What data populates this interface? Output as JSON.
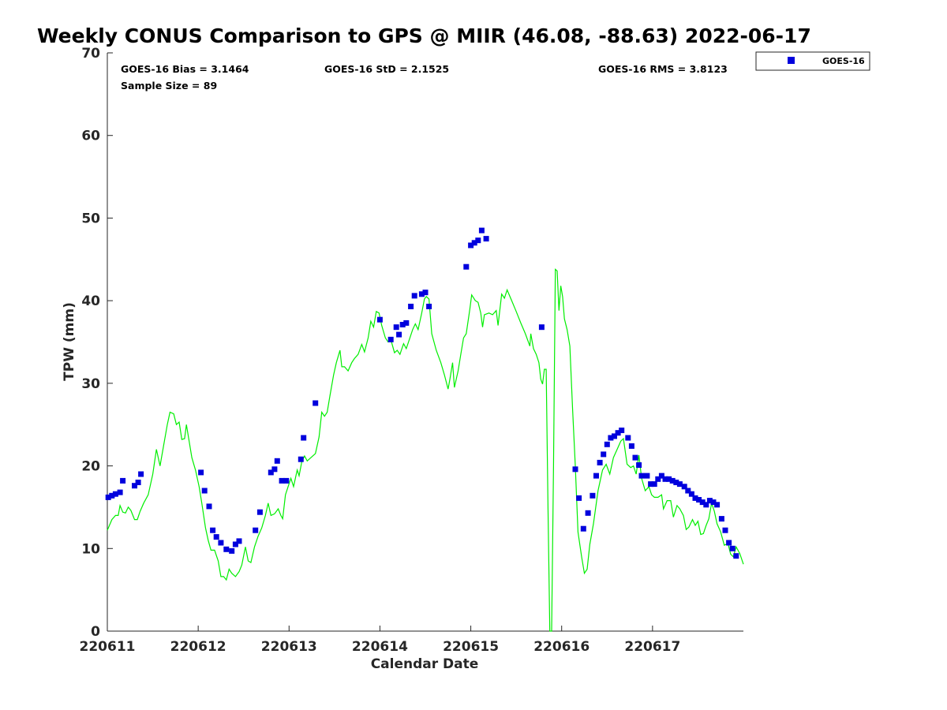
{
  "chart_data": {
    "type": "scatter",
    "title": "Weekly CONUS Comparison to GPS @ MIIR (46.08, -88.63) 2022-06-17",
    "xlabel": "Calendar Date",
    "ylabel": "TPW (mm)",
    "ylim": [
      0,
      70
    ],
    "xlim": [
      0,
      7
    ],
    "x_unit": "days since 220611",
    "yticks": [
      0,
      10,
      20,
      30,
      40,
      50,
      60,
      70
    ],
    "xticks": [
      {
        "x": 0,
        "label": "220611"
      },
      {
        "x": 1,
        "label": "220612"
      },
      {
        "x": 2,
        "label": "220613"
      },
      {
        "x": 3,
        "label": "220614"
      },
      {
        "x": 4,
        "label": "220615"
      },
      {
        "x": 5,
        "label": "220616"
      },
      {
        "x": 6,
        "label": "220617"
      }
    ],
    "stats": {
      "bias": "GOES-16 Bias = 3.1464",
      "std": "GOES-16 StD = 2.1525",
      "rms": "GOES-16 RMS = 3.8123",
      "sample": "Sample Size = 89"
    },
    "legend": {
      "position": "top-right",
      "entries": [
        "GOES-16"
      ]
    },
    "grid": false,
    "series": [
      {
        "name": "GOES-16",
        "kind": "scatter",
        "color": "#0000dd",
        "points": [
          [
            0.01,
            16.2
          ],
          [
            0.05,
            16.4
          ],
          [
            0.09,
            16.6
          ],
          [
            0.14,
            16.8
          ],
          [
            0.17,
            18.2
          ],
          [
            0.3,
            17.6
          ],
          [
            0.34,
            18.0
          ],
          [
            0.37,
            19.0
          ],
          [
            1.03,
            19.2
          ],
          [
            1.07,
            17.0
          ],
          [
            1.12,
            15.1
          ],
          [
            1.16,
            12.2
          ],
          [
            1.2,
            11.4
          ],
          [
            1.25,
            10.7
          ],
          [
            1.31,
            9.9
          ],
          [
            1.37,
            9.7
          ],
          [
            1.41,
            10.5
          ],
          [
            1.45,
            10.9
          ],
          [
            1.63,
            12.2
          ],
          [
            1.68,
            14.4
          ],
          [
            1.8,
            19.2
          ],
          [
            1.84,
            19.6
          ],
          [
            1.87,
            20.6
          ],
          [
            1.92,
            18.2
          ],
          [
            1.97,
            18.2
          ],
          [
            2.13,
            20.8
          ],
          [
            2.16,
            23.4
          ],
          [
            2.29,
            27.6
          ],
          [
            3.0,
            37.7
          ],
          [
            3.12,
            35.3
          ],
          [
            3.18,
            36.8
          ],
          [
            3.21,
            35.9
          ],
          [
            3.25,
            37.1
          ],
          [
            3.29,
            37.3
          ],
          [
            3.34,
            39.3
          ],
          [
            3.38,
            40.6
          ],
          [
            3.46,
            40.8
          ],
          [
            3.5,
            41.0
          ],
          [
            3.54,
            39.3
          ],
          [
            3.95,
            44.1
          ],
          [
            4.0,
            46.7
          ],
          [
            4.04,
            47.0
          ],
          [
            4.08,
            47.3
          ],
          [
            4.12,
            48.5
          ],
          [
            4.17,
            47.5
          ],
          [
            4.78,
            36.8
          ],
          [
            5.15,
            19.6
          ],
          [
            5.19,
            16.1
          ],
          [
            5.24,
            12.4
          ],
          [
            5.29,
            14.3
          ],
          [
            5.34,
            16.4
          ],
          [
            5.38,
            18.8
          ],
          [
            5.42,
            20.4
          ],
          [
            5.46,
            21.4
          ],
          [
            5.5,
            22.6
          ],
          [
            5.54,
            23.4
          ],
          [
            5.58,
            23.6
          ],
          [
            5.62,
            24.0
          ],
          [
            5.66,
            24.3
          ],
          [
            5.73,
            23.4
          ],
          [
            5.77,
            22.4
          ],
          [
            5.81,
            21.0
          ],
          [
            5.85,
            20.1
          ],
          [
            5.88,
            18.8
          ],
          [
            5.94,
            18.8
          ],
          [
            5.98,
            17.8
          ],
          [
            6.02,
            17.8
          ],
          [
            6.06,
            18.4
          ],
          [
            6.1,
            18.8
          ],
          [
            6.14,
            18.4
          ],
          [
            6.18,
            18.4
          ],
          [
            6.22,
            18.2
          ],
          [
            6.26,
            18.0
          ],
          [
            6.3,
            17.8
          ],
          [
            6.35,
            17.5
          ],
          [
            6.39,
            17.0
          ],
          [
            6.43,
            16.6
          ],
          [
            6.47,
            16.1
          ],
          [
            6.51,
            15.9
          ],
          [
            6.55,
            15.6
          ],
          [
            6.59,
            15.3
          ],
          [
            6.63,
            15.8
          ],
          [
            6.67,
            15.6
          ],
          [
            6.71,
            15.3
          ],
          [
            6.76,
            13.6
          ],
          [
            6.8,
            12.2
          ],
          [
            6.84,
            10.7
          ],
          [
            6.88,
            10.0
          ],
          [
            6.92,
            9.1
          ]
        ]
      },
      {
        "name": "GPS",
        "kind": "line",
        "color": "#00ee00",
        "points": [
          [
            0.0,
            12.2
          ],
          [
            0.05,
            13.5
          ],
          [
            0.09,
            14.0
          ],
          [
            0.12,
            14.0
          ],
          [
            0.14,
            15.2
          ],
          [
            0.17,
            14.4
          ],
          [
            0.2,
            14.3
          ],
          [
            0.23,
            15.0
          ],
          [
            0.26,
            14.6
          ],
          [
            0.3,
            13.5
          ],
          [
            0.33,
            13.5
          ],
          [
            0.36,
            14.5
          ],
          [
            0.4,
            15.5
          ],
          [
            0.45,
            16.5
          ],
          [
            0.5,
            19.0
          ],
          [
            0.54,
            22.0
          ],
          [
            0.58,
            20.0
          ],
          [
            0.62,
            22.5
          ],
          [
            0.66,
            25.0
          ],
          [
            0.69,
            26.5
          ],
          [
            0.73,
            26.3
          ],
          [
            0.76,
            25.0
          ],
          [
            0.79,
            25.3
          ],
          [
            0.82,
            23.2
          ],
          [
            0.85,
            23.3
          ],
          [
            0.87,
            25.0
          ],
          [
            0.93,
            21.0
          ],
          [
            0.97,
            19.5
          ],
          [
            1.01,
            17.5
          ],
          [
            1.04,
            15.5
          ],
          [
            1.08,
            12.5
          ],
          [
            1.11,
            11.0
          ],
          [
            1.14,
            9.8
          ],
          [
            1.18,
            9.8
          ],
          [
            1.22,
            8.5
          ],
          [
            1.25,
            6.6
          ],
          [
            1.28,
            6.6
          ],
          [
            1.31,
            6.2
          ],
          [
            1.34,
            7.5
          ],
          [
            1.37,
            7.0
          ],
          [
            1.41,
            6.6
          ],
          [
            1.45,
            7.2
          ],
          [
            1.48,
            8.0
          ],
          [
            1.52,
            10.2
          ],
          [
            1.55,
            8.5
          ],
          [
            1.58,
            8.3
          ],
          [
            1.62,
            10.2
          ],
          [
            1.66,
            11.5
          ],
          [
            1.7,
            12.5
          ],
          [
            1.74,
            14.0
          ],
          [
            1.77,
            15.5
          ],
          [
            1.8,
            14.0
          ],
          [
            1.84,
            14.2
          ],
          [
            1.88,
            14.8
          ],
          [
            1.91,
            14.0
          ],
          [
            1.93,
            13.6
          ],
          [
            1.96,
            16.5
          ],
          [
            1.99,
            17.5
          ],
          [
            2.02,
            18.5
          ],
          [
            2.05,
            17.5
          ],
          [
            2.09,
            19.5
          ],
          [
            2.11,
            18.8
          ],
          [
            2.14,
            20.5
          ],
          [
            2.17,
            21.2
          ],
          [
            2.2,
            20.6
          ],
          [
            2.25,
            21.1
          ],
          [
            2.29,
            21.5
          ],
          [
            2.33,
            23.5
          ],
          [
            2.36,
            26.5
          ],
          [
            2.39,
            26.0
          ],
          [
            2.42,
            26.5
          ],
          [
            2.45,
            28.5
          ],
          [
            2.49,
            31.0
          ],
          [
            2.52,
            32.5
          ],
          [
            2.56,
            34.0
          ],
          [
            2.58,
            32.0
          ],
          [
            2.61,
            32.0
          ],
          [
            2.65,
            31.5
          ],
          [
            2.69,
            32.5
          ],
          [
            2.72,
            33.0
          ],
          [
            2.76,
            33.5
          ],
          [
            2.8,
            34.7
          ],
          [
            2.83,
            33.8
          ],
          [
            2.87,
            35.5
          ],
          [
            2.9,
            37.5
          ],
          [
            2.93,
            36.8
          ],
          [
            2.96,
            38.7
          ],
          [
            2.99,
            38.5
          ],
          [
            3.02,
            37.0
          ],
          [
            3.06,
            35.5
          ],
          [
            3.09,
            35.0
          ],
          [
            3.12,
            35.3
          ],
          [
            3.16,
            33.7
          ],
          [
            3.19,
            34.0
          ],
          [
            3.22,
            33.5
          ],
          [
            3.26,
            34.8
          ],
          [
            3.29,
            34.2
          ],
          [
            3.33,
            35.5
          ],
          [
            3.36,
            36.5
          ],
          [
            3.39,
            37.2
          ],
          [
            3.42,
            36.5
          ],
          [
            3.46,
            38.5
          ],
          [
            3.49,
            40.2
          ],
          [
            3.51,
            40.5
          ],
          [
            3.54,
            40.2
          ],
          [
            3.57,
            36.0
          ],
          [
            3.62,
            34.0
          ],
          [
            3.67,
            32.5
          ],
          [
            3.71,
            31.0
          ],
          [
            3.75,
            29.3
          ],
          [
            3.77,
            30.5
          ],
          [
            3.8,
            32.5
          ],
          [
            3.82,
            29.5
          ],
          [
            3.86,
            31.5
          ],
          [
            3.89,
            33.5
          ],
          [
            3.92,
            35.5
          ],
          [
            3.95,
            36.0
          ],
          [
            3.99,
            39.0
          ],
          [
            4.01,
            40.7
          ],
          [
            4.05,
            40.0
          ],
          [
            4.08,
            39.8
          ],
          [
            4.11,
            38.5
          ],
          [
            4.13,
            36.8
          ],
          [
            4.15,
            38.3
          ],
          [
            4.2,
            38.5
          ],
          [
            4.24,
            38.3
          ],
          [
            4.28,
            38.8
          ],
          [
            4.3,
            37.0
          ],
          [
            4.34,
            40.8
          ],
          [
            4.37,
            40.3
          ],
          [
            4.4,
            41.3
          ],
          [
            4.45,
            40.0
          ],
          [
            4.5,
            38.7
          ],
          [
            4.55,
            37.3
          ],
          [
            4.6,
            36.0
          ],
          [
            4.65,
            34.5
          ],
          [
            4.66,
            36.0
          ],
          [
            4.69,
            34.2
          ],
          [
            4.72,
            33.5
          ],
          [
            4.75,
            32.5
          ],
          [
            4.77,
            30.5
          ],
          [
            4.79,
            29.9
          ],
          [
            4.81,
            31.7
          ],
          [
            4.83,
            31.7
          ],
          [
            4.85,
            15.0
          ],
          [
            4.87,
            0.0
          ],
          [
            4.89,
            0.0
          ],
          [
            4.91,
            20.0
          ],
          [
            4.93,
            43.8
          ],
          [
            4.95,
            43.6
          ],
          [
            4.97,
            38.8
          ],
          [
            4.99,
            41.8
          ],
          [
            5.01,
            40.5
          ],
          [
            5.03,
            37.8
          ],
          [
            5.06,
            36.5
          ],
          [
            5.09,
            34.5
          ],
          [
            5.12,
            27.0
          ],
          [
            5.15,
            20.0
          ],
          [
            5.18,
            12.0
          ],
          [
            5.22,
            9.0
          ],
          [
            5.25,
            7.0
          ],
          [
            5.28,
            7.5
          ],
          [
            5.31,
            10.5
          ],
          [
            5.35,
            13.0
          ],
          [
            5.4,
            17.0
          ],
          [
            5.45,
            19.5
          ],
          [
            5.49,
            20.2
          ],
          [
            5.53,
            19.0
          ],
          [
            5.57,
            21.0
          ],
          [
            5.61,
            22.0
          ],
          [
            5.65,
            23.0
          ],
          [
            5.68,
            23.3
          ],
          [
            5.72,
            20.2
          ],
          [
            5.76,
            19.8
          ],
          [
            5.79,
            20.0
          ],
          [
            5.82,
            19.0
          ],
          [
            5.85,
            21.3
          ],
          [
            5.88,
            18.5
          ],
          [
            5.92,
            17.0
          ],
          [
            5.96,
            17.5
          ],
          [
            5.99,
            16.5
          ],
          [
            6.02,
            16.2
          ],
          [
            6.06,
            16.2
          ],
          [
            6.1,
            16.5
          ],
          [
            6.12,
            14.8
          ],
          [
            6.16,
            15.8
          ],
          [
            6.2,
            15.8
          ],
          [
            6.23,
            13.8
          ],
          [
            6.27,
            15.2
          ],
          [
            6.3,
            14.8
          ],
          [
            6.34,
            14.0
          ],
          [
            6.37,
            12.3
          ],
          [
            6.4,
            12.6
          ],
          [
            6.44,
            13.5
          ],
          [
            6.47,
            12.8
          ],
          [
            6.5,
            13.3
          ],
          [
            6.53,
            11.7
          ],
          [
            6.56,
            11.8
          ],
          [
            6.59,
            12.8
          ],
          [
            6.62,
            13.6
          ],
          [
            6.65,
            15.5
          ],
          [
            6.68,
            14.5
          ],
          [
            6.71,
            13.0
          ],
          [
            6.75,
            12.0
          ],
          [
            6.79,
            10.4
          ],
          [
            6.83,
            10.6
          ],
          [
            6.86,
            9.3
          ],
          [
            6.89,
            9.0
          ],
          [
            6.92,
            10.2
          ],
          [
            6.96,
            9.4
          ],
          [
            7.0,
            8.1
          ]
        ]
      }
    ]
  }
}
